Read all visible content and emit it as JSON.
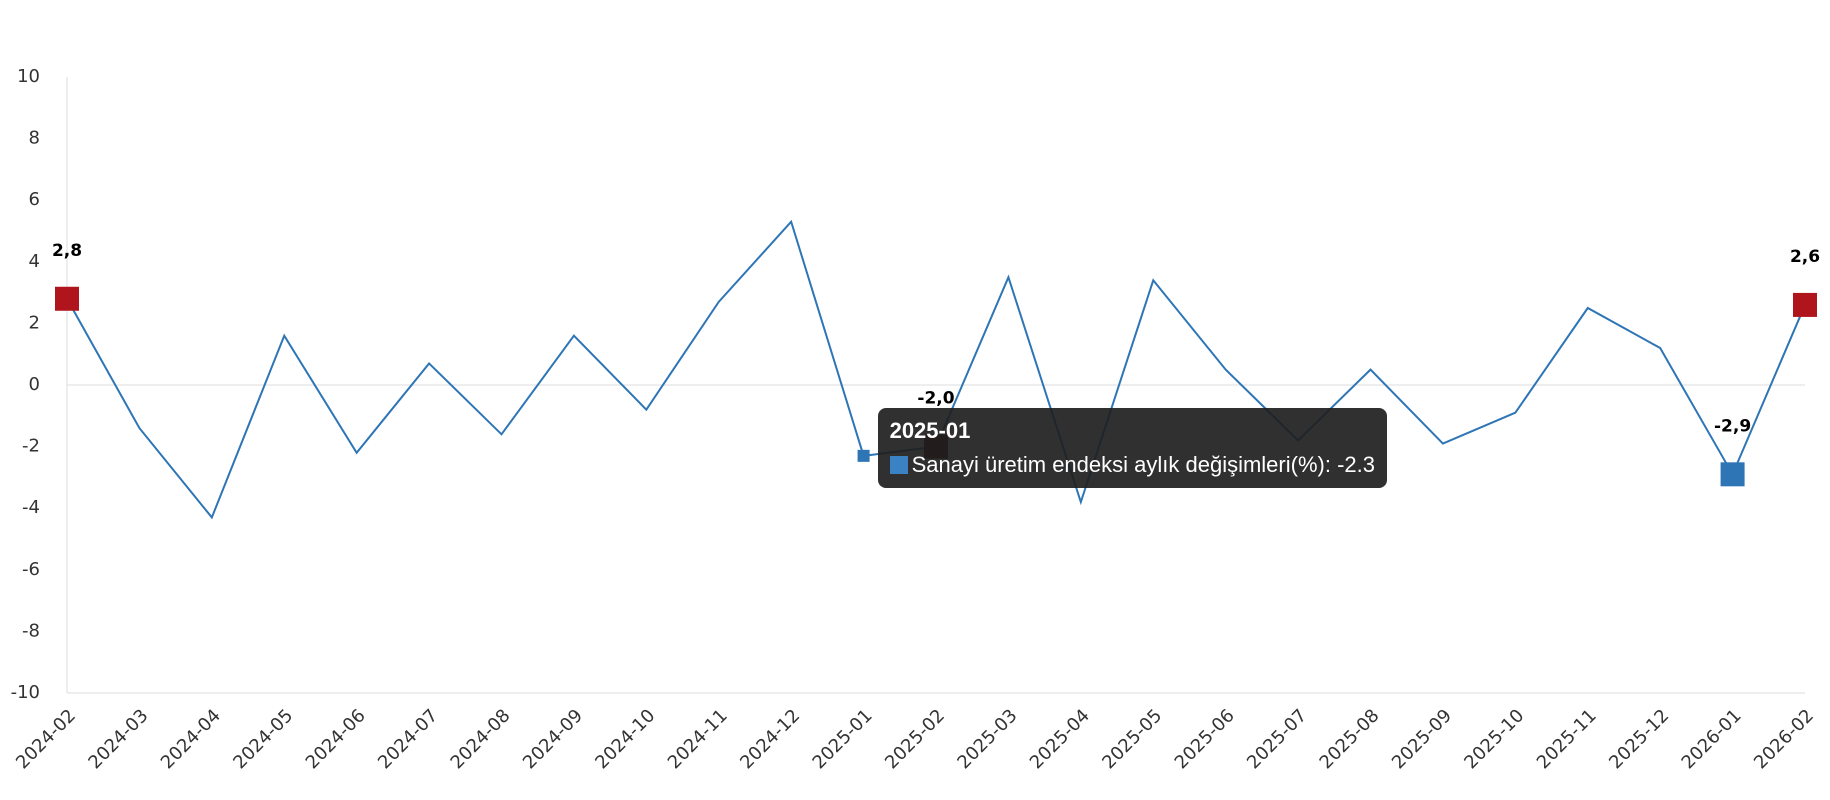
{
  "chart_data": {
    "type": "line",
    "categories": [
      "2024-02",
      "2024-03",
      "2024-04",
      "2024-05",
      "2024-06",
      "2024-07",
      "2024-08",
      "2024-09",
      "2024-10",
      "2024-11",
      "2024-12",
      "2025-01",
      "2025-02",
      "2025-03",
      "2025-04",
      "2025-05",
      "2025-06",
      "2025-07",
      "2025-08",
      "2025-09",
      "2025-10",
      "2025-11",
      "2025-12",
      "2026-01",
      "2026-02"
    ],
    "series": [
      {
        "name": "Sanayi üretim endeksi aylık değişimleri(%)",
        "color": "#2e75b6",
        "values": [
          2.8,
          -1.4,
          -4.3,
          1.6,
          -2.2,
          0.7,
          -1.6,
          1.6,
          -0.8,
          2.7,
          5.3,
          -2.3,
          -2.0,
          3.5,
          -3.8,
          3.4,
          0.5,
          -1.8,
          0.5,
          -1.9,
          -0.9,
          2.5,
          1.2,
          -2.9,
          2.6
        ],
        "value_labels": [
          "2,8",
          null,
          null,
          null,
          null,
          null,
          null,
          null,
          null,
          null,
          null,
          null,
          "-2,0",
          null,
          null,
          null,
          null,
          null,
          null,
          null,
          null,
          null,
          null,
          "-2,9",
          "2,6"
        ],
        "marker_colors": [
          "#b0141c",
          null,
          null,
          null,
          null,
          null,
          null,
          null,
          null,
          null,
          null,
          null,
          "#4a0a0a",
          null,
          null,
          null,
          null,
          null,
          null,
          null,
          null,
          null,
          null,
          "#2e75b6",
          "#b0141c"
        ]
      }
    ],
    "ylim": [
      -10,
      10
    ],
    "yticks": [
      -10,
      -8,
      -6,
      -4,
      -2,
      0,
      2,
      4,
      6,
      8,
      10
    ],
    "grid": false,
    "tooltip_category": "2025-01"
  }
}
